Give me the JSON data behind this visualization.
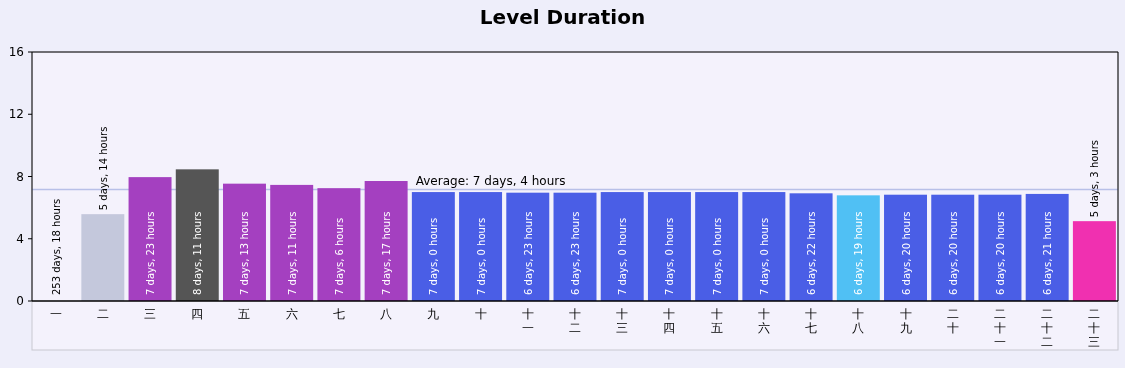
{
  "chart_data": {
    "type": "bar",
    "title": "Level Duration",
    "categories": [
      "一",
      "二",
      "三",
      "四",
      "五",
      "六",
      "七",
      "八",
      "九",
      "十",
      "十一",
      "十二",
      "十三",
      "十四",
      "十五",
      "十六",
      "十七",
      "十八",
      "十九",
      "二十",
      "二十一",
      "二十二",
      "二十三"
    ],
    "values": [
      null,
      5.58,
      7.96,
      8.46,
      7.54,
      7.46,
      7.25,
      7.71,
      7,
      7,
      6.96,
      6.96,
      7,
      7,
      7,
      7,
      6.92,
      6.79,
      6.83,
      6.83,
      6.83,
      6.88,
      5.13
    ],
    "annotations": [
      "253 days, 18 hours",
      "5 days, 14 hours",
      "7 days, 23 hours",
      "8 days, 11 hours",
      "7 days, 13 hours",
      "7 days, 11 hours",
      "7 days, 6 hours",
      "7 days, 17 hours",
      "7 days, 0 hours",
      "7 days, 0 hours",
      "6 days, 23 hours",
      "6 days, 23 hours",
      "7 days, 0 hours",
      "7 days, 0 hours",
      "7 days, 0 hours",
      "7 days, 0 hours",
      "6 days, 22 hours",
      "6 days, 19 hours",
      "6 days, 20 hours",
      "6 days, 20 hours",
      "6 days, 20 hours",
      "6 days, 21 hours",
      "5 days, 3 hours"
    ],
    "colors": [
      null,
      "#c4c8dc",
      "#a440c0",
      "#555555",
      "#a440c0",
      "#a440c0",
      "#a440c0",
      "#a440c0",
      "#4a5ee6",
      "#4a5ee6",
      "#4a5ee6",
      "#4a5ee6",
      "#4a5ee6",
      "#4a5ee6",
      "#4a5ee6",
      "#4a5ee6",
      "#4a5ee6",
      "#50c0f4",
      "#4a5ee6",
      "#4a5ee6",
      "#4a5ee6",
      "#4a5ee6",
      "#f030b0"
    ],
    "ylim": [
      0,
      16
    ],
    "yticks": [
      0,
      4,
      8,
      12,
      16
    ],
    "ref_lines": [
      {
        "axis": "y",
        "value": 7.17,
        "label": "Average: 7 days, 4 hours",
        "color": "#b8c0e8"
      }
    ]
  }
}
